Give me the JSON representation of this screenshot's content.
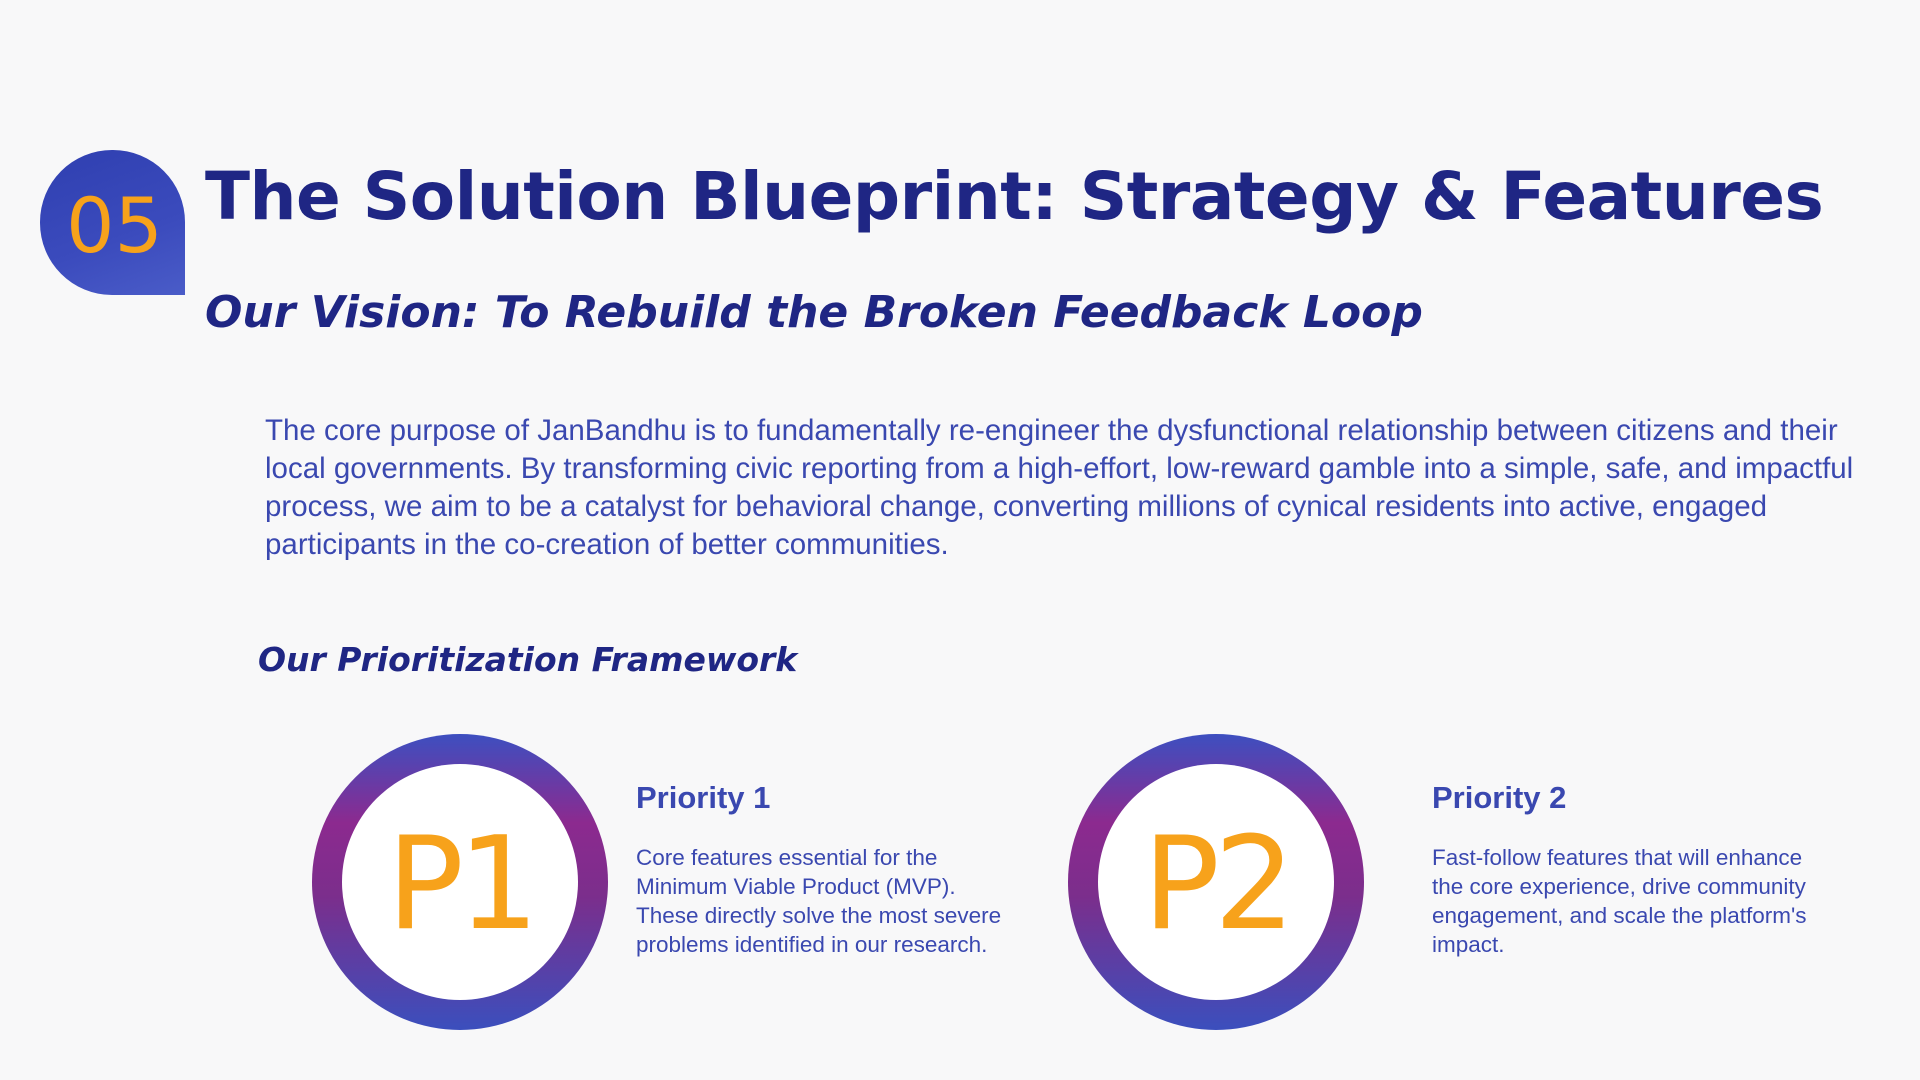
{
  "section": {
    "number": "05",
    "title": "The Solution Blueprint: Strategy & Features",
    "subtitle": "Our Vision: To Rebuild the Broken Feedback Loop"
  },
  "vision": {
    "text": "The core purpose of JanBandhu is to fundamentally re-engineer the dysfunctional relationship between citizens and their local governments. By transforming civic reporting from a high-effort, low-reward gamble into a simple, safe, and impactful process, we aim to be a catalyst for behavioral change, converting millions of cynical residents into active, engaged participants in the co-creation of better communities."
  },
  "framework": {
    "heading": "Our Prioritization Framework",
    "priorities": [
      {
        "badge": "P1",
        "title": "Priority 1",
        "description": "Core features essential for the Minimum Viable Product (MVP). These directly solve the most severe problems identified in our research."
      },
      {
        "badge": "P2",
        "title": "Priority 2",
        "description": "Fast-follow features that will enhance the core experience, drive community engagement, and scale the platform's impact."
      }
    ]
  },
  "colors": {
    "background": "#f8f8f9",
    "navy": "#1f2684",
    "body_blue": "#3a48b0",
    "accent_orange": "#f7a21b",
    "gradient_purple": "#8c2a8f"
  }
}
